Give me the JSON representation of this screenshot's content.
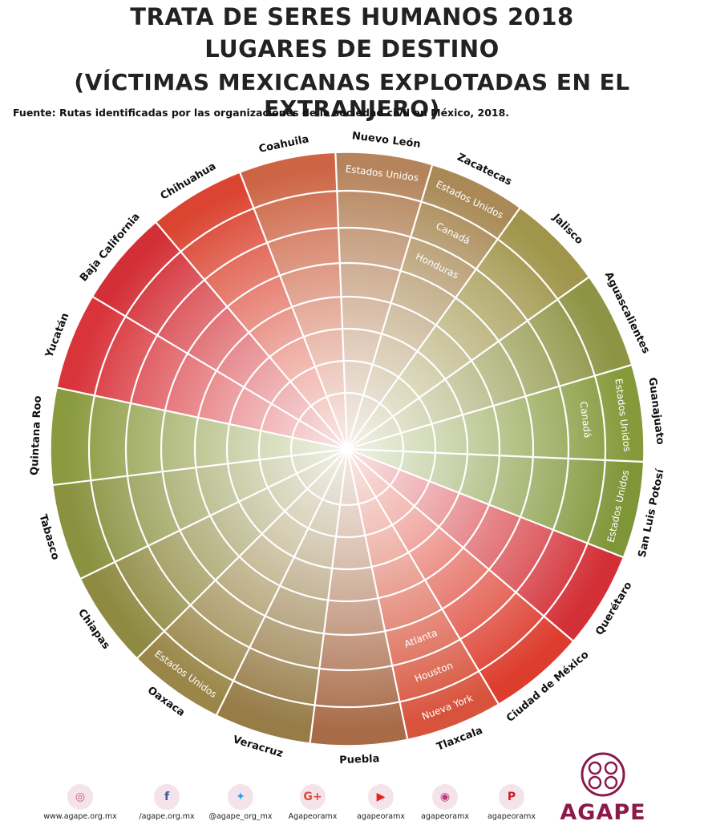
{
  "title": {
    "line1": "TRATA DE SERES HUMANOS 2018",
    "line2": "LUGARES DE DESTINO",
    "line3": "(VÍCTIMAS MEXICANAS EXPLOTADAS EN EL EXTRANJERO)"
  },
  "source": "Fuente: Rutas identificadas por las organizaciones de la sociedad civil en México, 2018.",
  "wheel": {
    "states": [
      {
        "name": "Quintana Roo",
        "color": "#8a9a3e",
        "destinations": []
      },
      {
        "name": "Yucatán",
        "color": "#d8343a",
        "destinations": []
      },
      {
        "name": "Baja California",
        "color": "#d32f36",
        "destinations": []
      },
      {
        "name": "Chihuahua",
        "color": "#db4430",
        "destinations": []
      },
      {
        "name": "Coahuila",
        "color": "#cd6545",
        "destinations": []
      },
      {
        "name": "Nuevo León",
        "color": "#b5845c",
        "destinations": [
          "Estados Unidos"
        ]
      },
      {
        "name": "Zacatecas",
        "color": "#a98a56",
        "destinations": [
          "Estados Unidos",
          "Canadá",
          "Honduras"
        ]
      },
      {
        "name": "Jalisco",
        "color": "#a0954a",
        "destinations": []
      },
      {
        "name": "Aguascalientes",
        "color": "#8e9444",
        "destinations": []
      },
      {
        "name": "Guanajuato",
        "color": "#869a3c",
        "destinations": [
          "Estados Unidos",
          "Canadá"
        ]
      },
      {
        "name": "San Luis Potosí",
        "color": "#7f9638",
        "destinations": [
          "Estados Unidos"
        ]
      },
      {
        "name": "Querétaro",
        "color": "#d32f36",
        "destinations": []
      },
      {
        "name": "Ciudad de México",
        "color": "#dd3d2d",
        "destinations": []
      },
      {
        "name": "Tlaxcala",
        "color": "#d8533c",
        "destinations": [
          "Nueva York",
          "Houston",
          "Atlanta"
        ]
      },
      {
        "name": "Puebla",
        "color": "#a86b48",
        "destinations": []
      },
      {
        "name": "Veracruz",
        "color": "#977c48",
        "destinations": []
      },
      {
        "name": "Oaxaca",
        "color": "#9a8648",
        "destinations": [
          "Estados Unidos"
        ]
      },
      {
        "name": "Chiapas",
        "color": "#8f8a42",
        "destinations": []
      },
      {
        "name": "Tabasco",
        "color": "#8a9240",
        "destinations": []
      }
    ]
  },
  "footer": {
    "links": [
      {
        "icon": "dribbble-icon",
        "glyph": "◎",
        "color": "#d44c86",
        "label": "www.agape.org.mx"
      },
      {
        "icon": "facebook-icon",
        "glyph": "f",
        "color": "#3b5998",
        "label": "/agape.org.mx"
      },
      {
        "icon": "twitter-icon",
        "glyph": "✦",
        "color": "#1da1f2",
        "label": "@agape_org_mx"
      },
      {
        "icon": "google-plus-icon",
        "glyph": "G+",
        "color": "#dd4b39",
        "label": "Agapeoramx"
      },
      {
        "icon": "youtube-icon",
        "glyph": "▶",
        "color": "#e62117",
        "label": "agapeoramx"
      },
      {
        "icon": "instagram-icon",
        "glyph": "◉",
        "color": "#c13584",
        "label": "agapeoramx"
      },
      {
        "icon": "pinterest-icon",
        "glyph": "P",
        "color": "#cb2027",
        "label": "agapeoramx"
      }
    ],
    "logo_text": "AGAPE",
    "logo_color": "#8b1a4a"
  }
}
